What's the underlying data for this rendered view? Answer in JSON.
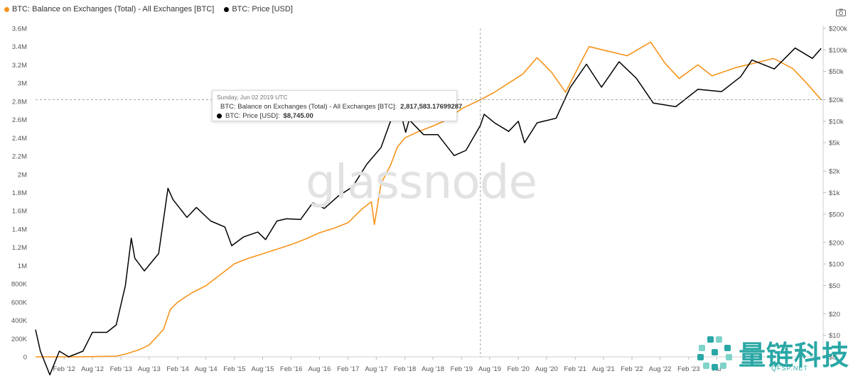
{
  "legend": [
    {
      "label": "BTC: Balance on Exchanges (Total) - All Exchanges [BTC]",
      "color": "#f7931a"
    },
    {
      "label": "BTC: Price [USD]",
      "color": "#000000"
    }
  ],
  "toolbar": {
    "icon": "camera-icon"
  },
  "tooltip": {
    "date": "Sunday, Jun 02 2019 UTC",
    "balance_label": "BTC: Balance on Exchanges (Total) - All Exchanges [BTC]:",
    "balance_value": "2,817,583.17699287",
    "price_label": "BTC: Price [USD]:",
    "price_value": "$8,745.00"
  },
  "watermark": "glassnode",
  "brand": {
    "name": "量链科技",
    "url": "QFSP.NET"
  },
  "chart_data": {
    "type": "line",
    "crosshair_date": "2019-06-02",
    "x_ticks": [
      "Feb '12",
      "Aug '12",
      "Feb '13",
      "Aug '13",
      "Feb '14",
      "Aug '14",
      "Feb '15",
      "Aug '15",
      "Feb '16",
      "Aug '16",
      "Feb '17",
      "Aug '17",
      "Feb '18",
      "Aug '18",
      "Feb '19",
      "Aug '19",
      "Feb '20",
      "Aug '20",
      "Feb '21",
      "Aug '21",
      "Feb '22",
      "Aug '22",
      "Feb '23",
      "Au"
    ],
    "y_left": {
      "ylim": [
        0,
        3600000
      ],
      "ticks": [
        "0",
        "200K",
        "400K",
        "600K",
        "800K",
        "1M",
        "1.2M",
        "1.4M",
        "1.6M",
        "1.8M",
        "2M",
        "2.2M",
        "2.4M",
        "2.6M",
        "2.8M",
        "3M",
        "3.2M",
        "3.4M",
        "3.6M"
      ]
    },
    "y_right": {
      "scale": "log",
      "ylim": [
        5,
        200000
      ],
      "ticks": [
        {
          "value": 5,
          "label": "$5"
        },
        {
          "value": 10,
          "label": "$10"
        },
        {
          "value": 20,
          "label": "$20"
        },
        {
          "value": 50,
          "label": "$50"
        },
        {
          "value": 100,
          "label": "$100"
        },
        {
          "value": 200,
          "label": "$200"
        },
        {
          "value": 500,
          "label": "$500"
        },
        {
          "value": 1000,
          "label": "$1k"
        },
        {
          "value": 2000,
          "label": "$2k"
        },
        {
          "value": 5000,
          "label": "$5k"
        },
        {
          "value": 10000,
          "label": "$10k"
        },
        {
          "value": 20000,
          "label": "$20k"
        },
        {
          "value": 50000,
          "label": "$50k"
        },
        {
          "value": 100000,
          "label": "$100k"
        },
        {
          "value": 200000,
          "label": "$200k"
        }
      ]
    },
    "series": [
      {
        "name": "BTC: Balance on Exchanges (Total) - All Exchanges [BTC]",
        "color": "#f7931a",
        "axis": "left",
        "points": [
          [
            "2011-08-01",
            0
          ],
          [
            "2012-06-01",
            1000
          ],
          [
            "2013-01-01",
            8000
          ],
          [
            "2013-03-01",
            30000
          ],
          [
            "2013-06-01",
            80000
          ],
          [
            "2013-08-01",
            130000
          ],
          [
            "2013-11-01",
            300000
          ],
          [
            "2013-12-15",
            520000
          ],
          [
            "2014-02-01",
            600000
          ],
          [
            "2014-05-01",
            700000
          ],
          [
            "2014-08-01",
            780000
          ],
          [
            "2014-11-01",
            900000
          ],
          [
            "2015-02-01",
            1020000
          ],
          [
            "2015-05-01",
            1080000
          ],
          [
            "2015-08-01",
            1130000
          ],
          [
            "2015-11-01",
            1180000
          ],
          [
            "2016-02-01",
            1230000
          ],
          [
            "2016-05-01",
            1290000
          ],
          [
            "2016-08-01",
            1360000
          ],
          [
            "2016-11-01",
            1410000
          ],
          [
            "2017-02-01",
            1470000
          ],
          [
            "2017-05-01",
            1620000
          ],
          [
            "2017-07-01",
            1700000
          ],
          [
            "2017-07-20",
            1450000
          ],
          [
            "2017-09-01",
            1900000
          ],
          [
            "2017-11-01",
            2100000
          ],
          [
            "2017-12-15",
            2300000
          ],
          [
            "2018-02-01",
            2400000
          ],
          [
            "2018-05-01",
            2470000
          ],
          [
            "2018-08-01",
            2530000
          ],
          [
            "2018-11-01",
            2600000
          ],
          [
            "2019-02-01",
            2720000
          ],
          [
            "2019-06-02",
            2817583
          ],
          [
            "2019-09-01",
            2900000
          ],
          [
            "2019-12-01",
            3000000
          ],
          [
            "2020-03-01",
            3100000
          ],
          [
            "2020-06-01",
            3280000
          ],
          [
            "2020-09-01",
            3120000
          ],
          [
            "2020-12-01",
            2900000
          ],
          [
            "2021-03-01",
            3200000
          ],
          [
            "2021-05-01",
            3400000
          ],
          [
            "2021-09-01",
            3350000
          ],
          [
            "2022-01-01",
            3300000
          ],
          [
            "2022-06-01",
            3450000
          ],
          [
            "2022-09-01",
            3220000
          ],
          [
            "2022-12-01",
            3050000
          ],
          [
            "2023-04-01",
            3200000
          ],
          [
            "2023-07-01",
            3080000
          ],
          [
            "2023-12-01",
            3170000
          ],
          [
            "2024-04-01",
            3220000
          ],
          [
            "2024-08-01",
            3270000
          ],
          [
            "2024-12-01",
            3160000
          ],
          [
            "2025-03-01",
            3000000
          ],
          [
            "2025-06-01",
            2820000
          ]
        ]
      },
      {
        "name": "BTC: Price [USD]",
        "color": "#000000",
        "axis": "right",
        "points": [
          [
            "2011-08-01",
            12
          ],
          [
            "2011-09-01",
            6
          ],
          [
            "2011-11-01",
            2.8
          ],
          [
            "2012-01-01",
            6
          ],
          [
            "2012-03-01",
            5
          ],
          [
            "2012-06-01",
            6
          ],
          [
            "2012-08-01",
            11
          ],
          [
            "2012-11-01",
            11
          ],
          [
            "2013-01-01",
            14
          ],
          [
            "2013-03-01",
            50
          ],
          [
            "2013-04-08",
            230
          ],
          [
            "2013-05-01",
            120
          ],
          [
            "2013-07-01",
            80
          ],
          [
            "2013-10-01",
            140
          ],
          [
            "2013-11-30",
            1150
          ],
          [
            "2014-01-01",
            800
          ],
          [
            "2014-04-01",
            450
          ],
          [
            "2014-06-01",
            620
          ],
          [
            "2014-09-01",
            400
          ],
          [
            "2014-12-01",
            330
          ],
          [
            "2015-01-14",
            180
          ],
          [
            "2015-04-01",
            240
          ],
          [
            "2015-07-01",
            280
          ],
          [
            "2015-08-20",
            220
          ],
          [
            "2015-11-01",
            400
          ],
          [
            "2016-01-01",
            430
          ],
          [
            "2016-04-01",
            420
          ],
          [
            "2016-06-18",
            720
          ],
          [
            "2016-09-01",
            600
          ],
          [
            "2016-12-01",
            900
          ],
          [
            "2017-03-01",
            1200
          ],
          [
            "2017-06-01",
            2500
          ],
          [
            "2017-09-01",
            4300
          ],
          [
            "2017-12-17",
            19000
          ],
          [
            "2018-02-06",
            7000
          ],
          [
            "2018-03-01",
            10500
          ],
          [
            "2018-06-01",
            6500
          ],
          [
            "2018-09-01",
            6500
          ],
          [
            "2018-12-15",
            3300
          ],
          [
            "2019-03-01",
            3900
          ],
          [
            "2019-06-02",
            8745
          ],
          [
            "2019-06-26",
            12500
          ],
          [
            "2019-09-01",
            9500
          ],
          [
            "2019-12-01",
            7200
          ],
          [
            "2020-02-01",
            10000
          ],
          [
            "2020-03-12",
            5000
          ],
          [
            "2020-06-01",
            9500
          ],
          [
            "2020-10-01",
            11000
          ],
          [
            "2021-01-01",
            30000
          ],
          [
            "2021-04-14",
            63000
          ],
          [
            "2021-07-20",
            30000
          ],
          [
            "2021-11-10",
            68000
          ],
          [
            "2022-03-01",
            40000
          ],
          [
            "2022-06-18",
            18000
          ],
          [
            "2022-11-10",
            16000
          ],
          [
            "2023-04-01",
            28000
          ],
          [
            "2023-09-01",
            26000
          ],
          [
            "2024-01-01",
            42000
          ],
          [
            "2024-03-14",
            72000
          ],
          [
            "2024-08-05",
            54000
          ],
          [
            "2024-12-17",
            106000
          ],
          [
            "2025-04-07",
            76000
          ],
          [
            "2025-06-02",
            105000
          ]
        ]
      }
    ]
  }
}
